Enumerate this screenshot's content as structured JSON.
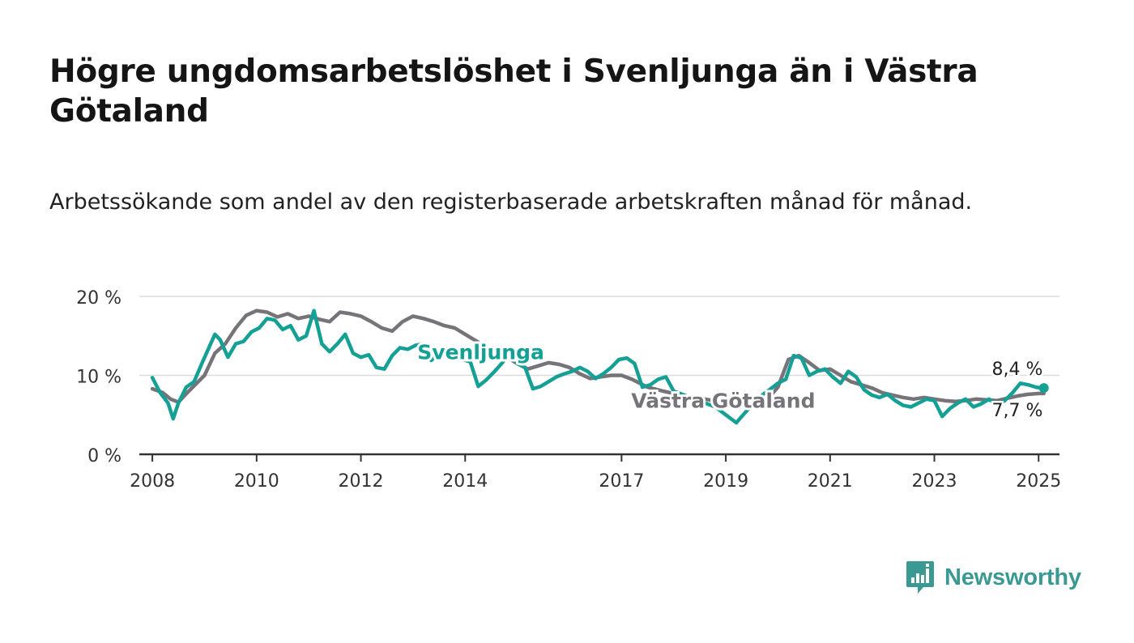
{
  "title": "Högre ungdomsarbetslöshet i Svenljunga än i Västra Götaland",
  "subtitle": "Arbetssökande som andel av den registerbaserade arbetskraften månad för månad.",
  "brand": {
    "name": "Newsworthy",
    "icon": "newsworthy-logo-icon"
  },
  "colors": {
    "svenljunga": "#15a096",
    "vastra_gotaland": "#777479",
    "grid": "#dcdcdc",
    "axis": "#333333",
    "brand": "#3a9a93"
  },
  "chart_data": {
    "type": "line",
    "title": "Högre ungdomsarbetslöshet i Svenljunga än i Västra Götaland",
    "xlabel": "",
    "ylabel": "",
    "xlim": [
      2007.75,
      2025.4
    ],
    "ylim": [
      0,
      20
    ],
    "y_ticks": [
      0,
      10,
      20
    ],
    "y_tick_labels": [
      "0 %",
      "10 %",
      "20 %"
    ],
    "x_ticks": [
      2008,
      2010,
      2012,
      2014,
      2017,
      2019,
      2021,
      2023,
      2025
    ],
    "x_tick_labels": [
      "2008",
      "2010",
      "2012",
      "2014",
      "2017",
      "2019",
      "2021",
      "2023",
      "2025"
    ],
    "grid": true,
    "series": [
      {
        "name": "Västra Götaland",
        "key": "vastra_gotaland",
        "x": [
          2008.0,
          2008.2,
          2008.35,
          2008.5,
          2008.7,
          2009.0,
          2009.2,
          2009.4,
          2009.6,
          2009.8,
          2010.0,
          2010.2,
          2010.4,
          2010.6,
          2010.8,
          2011.0,
          2011.2,
          2011.4,
          2011.6,
          2011.8,
          2012.0,
          2012.2,
          2012.4,
          2012.6,
          2012.8,
          2013.0,
          2013.2,
          2013.4,
          2013.6,
          2013.8,
          2014.0,
          2014.2,
          2014.4,
          2014.6,
          2014.8,
          2015.0,
          2015.2,
          2015.4,
          2015.6,
          2015.8,
          2016.0,
          2016.2,
          2016.4,
          2016.6,
          2016.8,
          2017.0,
          2017.2,
          2017.5,
          2017.8,
          2018.0,
          2018.3,
          2018.6,
          2019.0,
          2019.2,
          2019.4,
          2019.6,
          2019.8,
          2020.0,
          2020.2,
          2020.4,
          2020.6,
          2020.8,
          2021.0,
          2021.2,
          2021.4,
          2021.6,
          2021.8,
          2022.0,
          2022.2,
          2022.4,
          2022.6,
          2022.8,
          2023.0,
          2023.2,
          2023.4,
          2023.6,
          2023.8,
          2024.0,
          2024.2,
          2024.4,
          2024.6,
          2024.8,
          2025.0,
          2025.1
        ],
        "values": [
          8.3,
          7.8,
          7.0,
          6.6,
          8.0,
          10.0,
          12.8,
          14.0,
          16.0,
          17.6,
          18.2,
          18.0,
          17.4,
          17.8,
          17.2,
          17.5,
          17.1,
          16.8,
          18.0,
          17.8,
          17.5,
          16.8,
          16.0,
          15.6,
          16.8,
          17.5,
          17.2,
          16.8,
          16.3,
          16.0,
          15.2,
          14.4,
          13.6,
          13.0,
          12.3,
          11.5,
          10.8,
          11.2,
          11.6,
          11.4,
          11.0,
          10.2,
          9.6,
          9.8,
          10.0,
          10.0,
          9.5,
          8.5,
          8.0,
          7.7,
          7.3,
          7.0,
          6.5,
          6.8,
          7.0,
          7.2,
          7.0,
          8.5,
          12.0,
          12.5,
          11.6,
          10.6,
          10.8,
          10.0,
          9.2,
          8.8,
          8.4,
          7.8,
          7.5,
          7.2,
          7.0,
          7.2,
          7.0,
          6.8,
          6.7,
          6.8,
          7.0,
          6.9,
          6.8,
          7.1,
          7.4,
          7.6,
          7.7,
          7.7
        ],
        "end_label": "7,7 %"
      },
      {
        "name": "Svenljunga",
        "key": "svenljunga",
        "x": [
          2008.0,
          2008.15,
          2008.3,
          2008.4,
          2008.5,
          2008.65,
          2008.8,
          2008.95,
          2009.05,
          2009.2,
          2009.3,
          2009.45,
          2009.6,
          2009.75,
          2009.9,
          2010.05,
          2010.2,
          2010.35,
          2010.5,
          2010.65,
          2010.8,
          2010.95,
          2011.1,
          2011.25,
          2011.4,
          2011.55,
          2011.7,
          2011.85,
          2012.0,
          2012.15,
          2012.3,
          2012.45,
          2012.6,
          2012.75,
          2012.9,
          2013.05,
          2013.2,
          2013.35,
          2013.5,
          2013.65,
          2013.8,
          2013.95,
          2014.1,
          2014.25,
          2014.4,
          2014.55,
          2014.7,
          2014.85,
          2015.0,
          2015.15,
          2015.3,
          2015.45,
          2015.6,
          2015.75,
          2015.9,
          2016.05,
          2016.2,
          2016.35,
          2016.5,
          2016.65,
          2016.8,
          2016.95,
          2017.1,
          2017.25,
          2017.4,
          2017.55,
          2017.7,
          2017.85,
          2018.0,
          2018.2,
          2018.4,
          2018.6,
          2018.8,
          2019.0,
          2019.2,
          2019.4,
          2019.6,
          2019.8,
          2020.0,
          2020.15,
          2020.3,
          2020.45,
          2020.6,
          2020.75,
          2020.9,
          2021.05,
          2021.2,
          2021.35,
          2021.5,
          2021.65,
          2021.8,
          2021.95,
          2022.1,
          2022.25,
          2022.4,
          2022.55,
          2022.7,
          2022.85,
          2023.0,
          2023.15,
          2023.3,
          2023.45,
          2023.6,
          2023.75,
          2023.9,
          2024.05,
          2024.2,
          2024.35,
          2024.5,
          2024.65,
          2024.8,
          2024.95,
          2025.05,
          2025.1
        ],
        "values": [
          9.7,
          7.8,
          6.5,
          4.5,
          6.5,
          8.5,
          9.2,
          11.5,
          13.0,
          15.2,
          14.5,
          12.3,
          14.0,
          14.3,
          15.5,
          16.0,
          17.2,
          17.0,
          15.8,
          16.3,
          14.5,
          15.0,
          18.2,
          14.0,
          13.0,
          14.0,
          15.2,
          12.8,
          12.3,
          12.6,
          11.0,
          10.8,
          12.5,
          13.5,
          13.3,
          13.8,
          14.0,
          11.9,
          12.8,
          13.0,
          12.5,
          12.0,
          11.7,
          8.6,
          9.4,
          10.4,
          11.5,
          12.8,
          11.5,
          11.0,
          8.3,
          8.6,
          9.2,
          9.8,
          10.2,
          10.5,
          11.0,
          10.5,
          9.6,
          10.2,
          11.0,
          12.0,
          12.2,
          11.5,
          8.5,
          8.8,
          9.5,
          9.8,
          8.0,
          7.5,
          7.0,
          6.5,
          6.0,
          5.0,
          4.0,
          5.5,
          7.0,
          8.0,
          9.0,
          9.5,
          12.5,
          12.2,
          10.0,
          10.5,
          10.8,
          9.8,
          9.0,
          10.5,
          9.8,
          8.2,
          7.5,
          7.2,
          7.6,
          6.8,
          6.2,
          6.0,
          6.5,
          7.0,
          6.8,
          4.8,
          5.8,
          6.5,
          7.0,
          6.0,
          6.4,
          7.0,
          6.3,
          6.8,
          7.8,
          9.0,
          8.8,
          8.5,
          8.4,
          8.4
        ],
        "end_label": "8,4 %"
      }
    ],
    "annotations": [
      {
        "series": "Svenljunga",
        "text": "Svenljunga",
        "at_x": 2014.3,
        "at_y": 13.0
      },
      {
        "series": "Västra Götaland",
        "text": "Västra Götaland",
        "at_x": 2018.95,
        "at_y": 6.8
      }
    ]
  }
}
